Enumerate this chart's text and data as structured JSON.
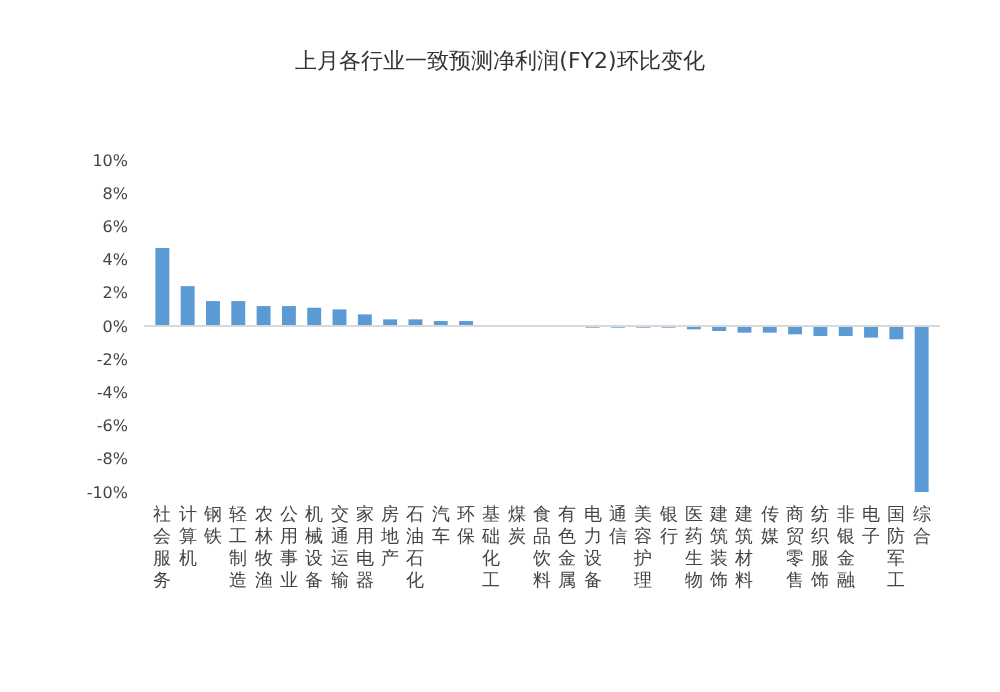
{
  "chart_data": {
    "type": "bar",
    "title": "上月各行业一致预测净利润(FY2)环比变化",
    "categories": [
      "社会服务",
      "计算机",
      "钢铁",
      "轻工制造",
      "农林牧渔",
      "公用事业",
      "机械设备",
      "交通运输",
      "家用电器",
      "房地产",
      "石油石化",
      "汽车",
      "环保",
      "基础化工",
      "煤炭",
      "食品饮料",
      "有色金属",
      "电力设备",
      "通信",
      "美容护理",
      "银行",
      "医药生物",
      "建筑装饰",
      "建筑材料",
      "传媒",
      "商贸零售",
      "纺织服饰",
      "非银金融",
      "电子",
      "国防军工",
      "综合"
    ],
    "values": [
      4.7,
      2.4,
      1.5,
      1.5,
      1.2,
      1.2,
      1.1,
      1.0,
      0.7,
      0.4,
      0.4,
      0.3,
      0.3,
      0,
      0,
      0,
      0,
      -0.1,
      -0.1,
      -0.1,
      -0.1,
      -0.2,
      -0.3,
      -0.4,
      -0.4,
      -0.5,
      -0.6,
      -0.6,
      -0.7,
      -0.8,
      -10
    ],
    "color": "#5b9bd5",
    "ylim": [
      -10,
      10
    ],
    "yticks": [
      {
        "value": -10,
        "label": "-10%"
      },
      {
        "value": -8,
        "label": "-8%"
      },
      {
        "value": -6,
        "label": "-6%"
      },
      {
        "value": -4,
        "label": "-4%"
      },
      {
        "value": -2,
        "label": "-2%"
      },
      {
        "value": 0,
        "label": "0%"
      },
      {
        "value": 2,
        "label": "2%"
      },
      {
        "value": 4,
        "label": "4%"
      },
      {
        "value": 6,
        "label": "6%"
      },
      {
        "value": 8,
        "label": "8%"
      },
      {
        "value": 10,
        "label": "10%"
      }
    ]
  }
}
